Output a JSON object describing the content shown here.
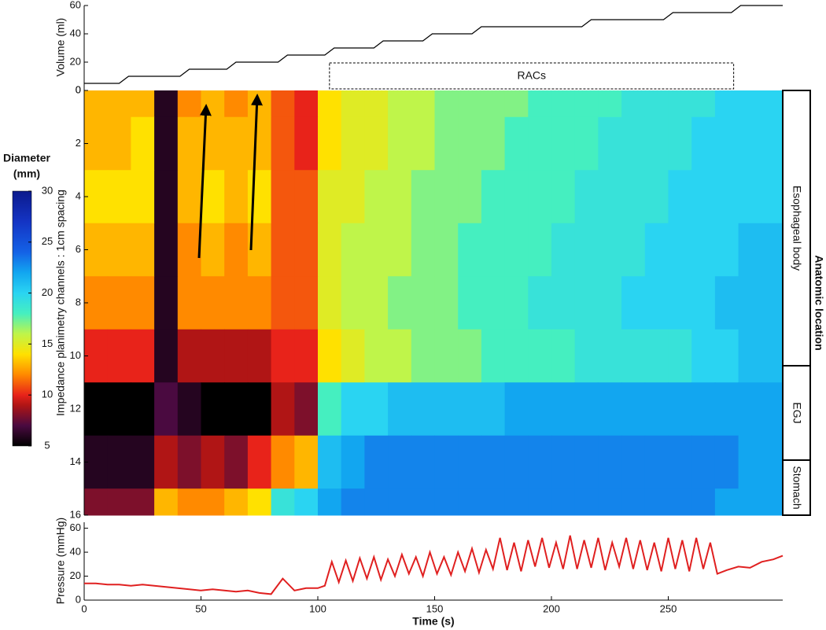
{
  "chart_data": [
    {
      "type": "line",
      "ylabel": "Volume (ml)",
      "x": [
        0,
        15,
        19,
        41,
        45,
        61,
        65,
        83,
        87,
        103,
        107,
        124,
        128,
        145,
        149,
        166,
        170,
        213,
        217,
        248,
        252,
        277,
        281,
        299
      ],
      "values": [
        5,
        5,
        10,
        10,
        15,
        15,
        20,
        20,
        25,
        25,
        30,
        30,
        35,
        35,
        40,
        40,
        45,
        45,
        50,
        50,
        55,
        55,
        60,
        60
      ],
      "color": "#000000",
      "xlim": [
        0,
        299
      ],
      "ylim": [
        0,
        60
      ],
      "yticks": [
        0,
        20,
        40,
        60
      ],
      "annotations": [
        "RACs"
      ]
    },
    {
      "type": "heatmap",
      "ylabel": "Impedance planimetry channels : 1cm spacing",
      "x": [
        5,
        15,
        25,
        35,
        45,
        55,
        65,
        75,
        85,
        95,
        105,
        115,
        125,
        135,
        145,
        155,
        165,
        175,
        185,
        195,
        205,
        215,
        225,
        235,
        245,
        255,
        265,
        275,
        285,
        295
      ],
      "y": [
        0,
        2,
        4,
        6,
        8,
        10,
        12,
        14,
        16
      ],
      "z": [
        [
          13,
          13,
          13,
          6,
          12,
          13,
          12,
          13,
          11,
          10,
          14,
          15,
          15,
          16,
          16,
          17,
          17,
          17,
          17,
          18,
          18,
          18,
          18,
          19,
          19,
          19,
          19,
          20,
          20,
          20
        ],
        [
          13,
          13,
          14,
          6,
          13,
          13,
          13,
          13,
          11,
          10,
          14,
          15,
          15,
          16,
          16,
          17,
          17,
          17,
          18,
          18,
          18,
          18,
          19,
          19,
          19,
          19,
          20,
          20,
          20,
          20
        ],
        [
          14,
          14,
          14,
          6,
          13,
          14,
          13,
          14,
          11,
          11,
          15,
          15,
          16,
          16,
          17,
          17,
          17,
          18,
          18,
          18,
          18,
          19,
          19,
          19,
          19,
          20,
          20,
          20,
          20,
          20
        ],
        [
          13,
          13,
          13,
          6,
          12,
          13,
          12,
          13,
          11,
          11,
          15,
          16,
          16,
          16,
          17,
          17,
          18,
          18,
          18,
          18,
          19,
          19,
          19,
          19,
          20,
          20,
          20,
          20,
          21,
          21
        ],
        [
          12,
          12,
          12,
          6,
          12,
          12,
          12,
          12,
          11,
          11,
          15,
          16,
          16,
          17,
          17,
          17,
          18,
          18,
          18,
          19,
          19,
          19,
          19,
          20,
          20,
          20,
          20,
          21,
          21,
          21
        ],
        [
          10,
          10,
          10,
          6,
          9,
          9,
          9,
          9,
          10,
          10,
          14,
          15,
          16,
          16,
          17,
          17,
          17,
          18,
          18,
          18,
          18,
          19,
          19,
          19,
          19,
          19,
          20,
          20,
          21,
          21
        ],
        [
          5,
          5,
          5,
          7,
          6,
          5,
          5,
          5,
          9,
          8,
          18,
          20,
          20,
          21,
          21,
          21,
          21,
          21,
          22,
          22,
          22,
          22,
          22,
          22,
          22,
          22,
          22,
          22,
          22,
          22
        ],
        [
          6,
          6,
          6,
          9,
          8,
          9,
          8,
          10,
          12,
          13,
          21,
          22,
          23,
          23,
          23,
          23,
          23,
          23,
          23,
          23,
          23,
          23,
          23,
          23,
          23,
          23,
          23,
          23,
          22,
          22
        ],
        [
          8,
          8,
          8,
          13,
          12,
          12,
          13,
          14,
          19,
          20,
          22,
          23,
          23,
          23,
          23,
          23,
          23,
          23,
          23,
          23,
          23,
          23,
          23,
          23,
          23,
          23,
          23,
          22,
          22,
          22
        ]
      ],
      "xlim": [
        0,
        299
      ],
      "ylim": [
        0,
        16
      ],
      "y_reversed": true,
      "yticks": [
        0,
        2,
        4,
        6,
        8,
        10,
        12,
        14,
        16
      ],
      "colorbar_title": [
        "Diameter",
        "(mm)"
      ],
      "zlim": [
        5,
        30
      ],
      "zticks": [
        5,
        10,
        15,
        20,
        25,
        30
      ],
      "regions_title": "Anatomic location",
      "regions": [
        "Esophageal body",
        "EGJ",
        "Stomach"
      ]
    },
    {
      "type": "line",
      "ylabel": "Pressure (mmHg)",
      "xlabel": "Time (s)",
      "x": [
        0,
        5,
        10,
        15,
        20,
        25,
        30,
        35,
        40,
        45,
        50,
        55,
        60,
        65,
        70,
        75,
        80,
        85,
        90,
        95,
        100,
        103,
        106,
        109,
        112,
        115,
        118,
        121,
        124,
        127,
        130,
        133,
        136,
        139,
        142,
        145,
        148,
        151,
        154,
        157,
        160,
        163,
        166,
        169,
        172,
        175,
        178,
        181,
        184,
        187,
        190,
        193,
        196,
        199,
        202,
        205,
        208,
        211,
        214,
        217,
        220,
        223,
        226,
        229,
        232,
        235,
        238,
        241,
        244,
        247,
        250,
        253,
        256,
        259,
        262,
        265,
        268,
        271,
        275,
        280,
        285,
        290,
        295,
        299
      ],
      "values": [
        14,
        14,
        13,
        13,
        12,
        13,
        12,
        11,
        10,
        9,
        8,
        9,
        8,
        7,
        8,
        6,
        5,
        18,
        8,
        10,
        10,
        12,
        32,
        15,
        33,
        16,
        35,
        18,
        36,
        17,
        34,
        20,
        38,
        22,
        36,
        20,
        40,
        22,
        36,
        21,
        40,
        24,
        43,
        23,
        42,
        26,
        52,
        25,
        48,
        24,
        50,
        28,
        52,
        27,
        48,
        26,
        54,
        26,
        50,
        27,
        52,
        25,
        48,
        28,
        52,
        26,
        50,
        25,
        48,
        24,
        52,
        26,
        50,
        24,
        52,
        26,
        48,
        22,
        25,
        28,
        27,
        32,
        34,
        37
      ],
      "color": "#e02020",
      "xlim": [
        0,
        299
      ],
      "ylim": [
        0,
        65
      ],
      "yticks": [
        0,
        20,
        40,
        60
      ],
      "xticks": [
        0,
        50,
        100,
        150,
        200,
        250
      ]
    }
  ]
}
